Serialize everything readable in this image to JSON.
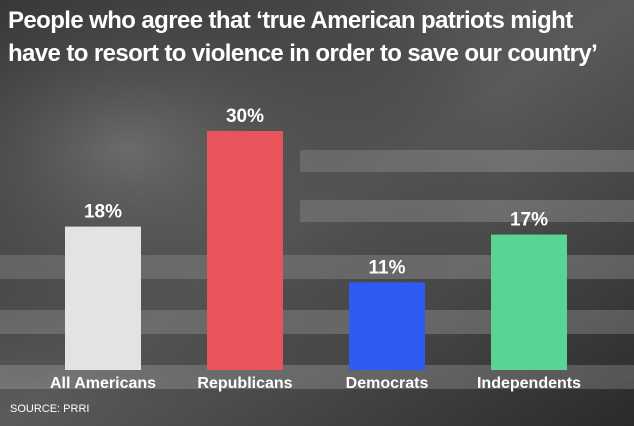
{
  "chart_data": {
    "type": "bar",
    "title": "People who agree that ‘true American patriots might have to resort to violence in order to save our country’",
    "categories": [
      "All Americans",
      "Republicans",
      "Democrats",
      "Independents"
    ],
    "values": [
      18,
      30,
      11,
      17
    ],
    "value_labels": [
      "18%",
      "30%",
      "11%",
      "17%"
    ],
    "colors": [
      "#e3e3e3",
      "#e9545b",
      "#2e5cf3",
      "#58d594"
    ],
    "source": "SOURCE: PRRI"
  }
}
